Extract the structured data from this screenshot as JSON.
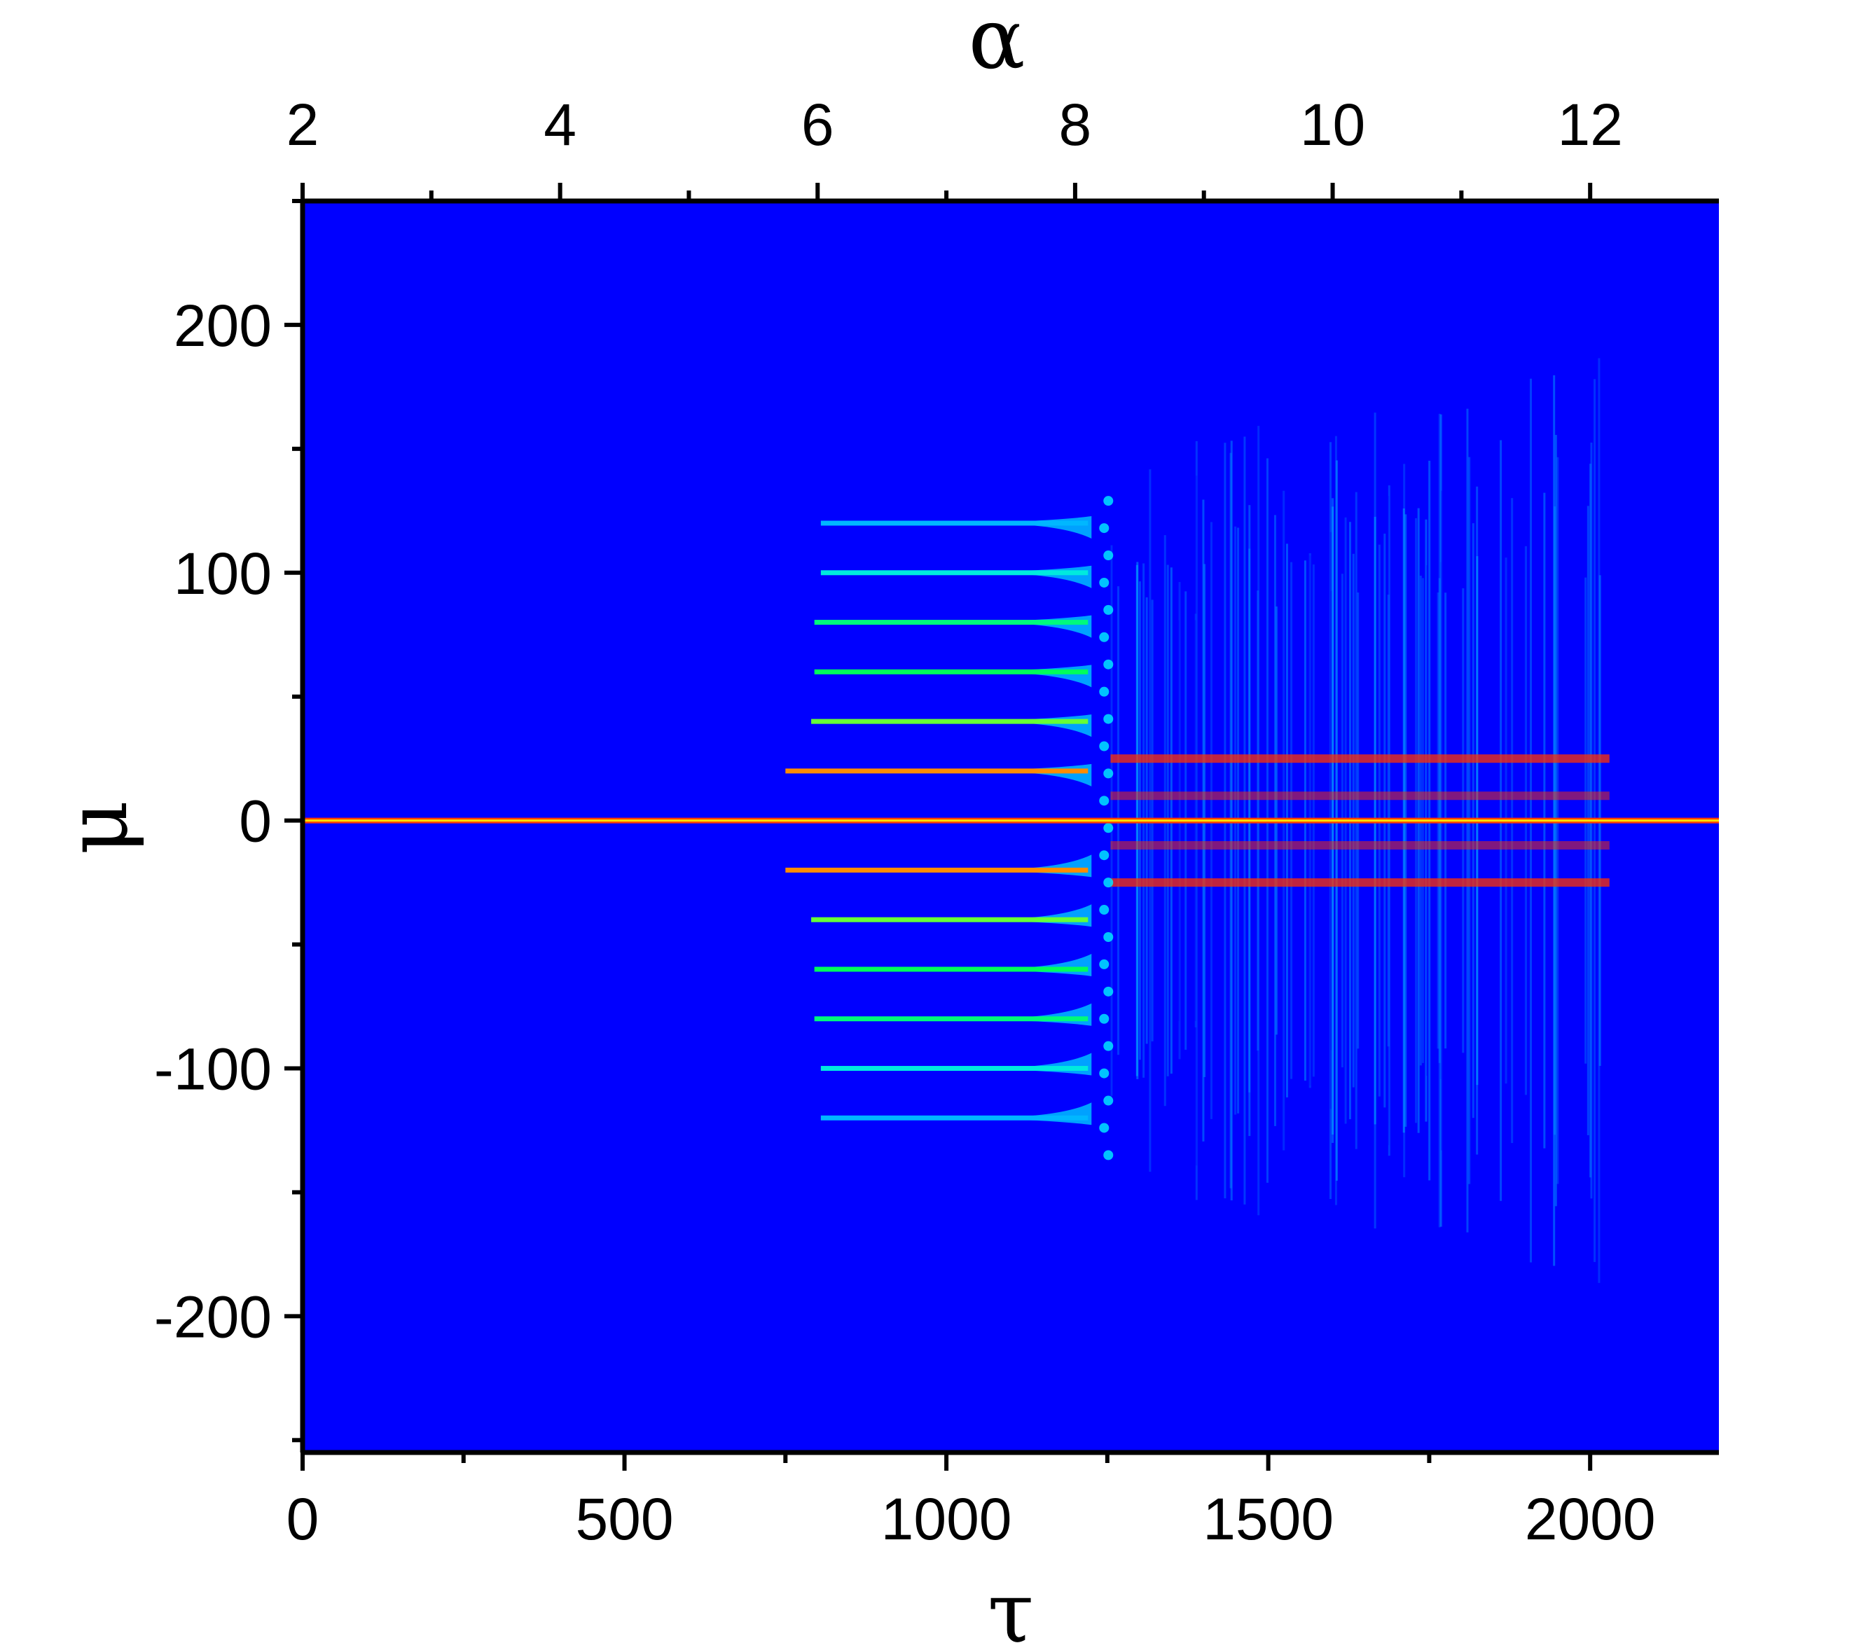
{
  "chart_data": {
    "type": "heatmap",
    "title": "",
    "xlabel": "τ",
    "ylabel": "μ",
    "x2label": "α",
    "xlim": [
      0,
      2200
    ],
    "ylim": [
      -255,
      250
    ],
    "x2lim": [
      2,
      13
    ],
    "x_ticks": [
      0,
      500,
      1000,
      1500,
      2000
    ],
    "x_tick_labels": [
      "0",
      "500",
      "1000",
      "1500",
      "2000"
    ],
    "x2_ticks": [
      2,
      4,
      6,
      8,
      10,
      12
    ],
    "x2_tick_labels": [
      "2",
      "4",
      "6",
      "8",
      "10",
      "12"
    ],
    "y_ticks": [
      -200,
      -100,
      0,
      100,
      200
    ],
    "y_tick_labels": [
      "-200",
      "-100",
      "0",
      "100",
      "200"
    ],
    "grid": false,
    "legend": "none",
    "colormap": [
      "#0000ff",
      "#00e5ff",
      "#00ff5a",
      "#ffff00",
      "#ff4000"
    ],
    "background_color": "#0000ff",
    "features": {
      "central_line": {
        "mu": 0,
        "tau_start": 0,
        "tau_end": 2200,
        "color": "#ff4000"
      },
      "discrete_branches": [
        {
          "mu": 20,
          "tau_start": 750,
          "tau_end": 1220,
          "intensity": 0.9
        },
        {
          "mu": -20,
          "tau_start": 750,
          "tau_end": 1220,
          "intensity": 0.9
        },
        {
          "mu": 40,
          "tau_start": 790,
          "tau_end": 1220,
          "intensity": 0.6
        },
        {
          "mu": -40,
          "tau_start": 790,
          "tau_end": 1220,
          "intensity": 0.6
        },
        {
          "mu": 60,
          "tau_start": 795,
          "tau_end": 1220,
          "intensity": 0.5
        },
        {
          "mu": -60,
          "tau_start": 795,
          "tau_end": 1220,
          "intensity": 0.5
        },
        {
          "mu": 80,
          "tau_start": 795,
          "tau_end": 1220,
          "intensity": 0.45
        },
        {
          "mu": -80,
          "tau_start": 795,
          "tau_end": 1220,
          "intensity": 0.45
        },
        {
          "mu": 100,
          "tau_start": 805,
          "tau_end": 1220,
          "intensity": 0.3
        },
        {
          "mu": -100,
          "tau_start": 805,
          "tau_end": 1220,
          "intensity": 0.3
        },
        {
          "mu": 120,
          "tau_start": 805,
          "tau_end": 1220,
          "intensity": 0.2
        },
        {
          "mu": -120,
          "tau_start": 805,
          "tau_end": 1220,
          "intensity": 0.2
        }
      ],
      "continuum": {
        "tau_start": 1255,
        "tau_end": 2030,
        "mu_halfwidth_start": 140,
        "mu_halfwidth_end": 180,
        "strong_bands_mu": [
          25,
          -25,
          10,
          -10
        ]
      }
    }
  }
}
